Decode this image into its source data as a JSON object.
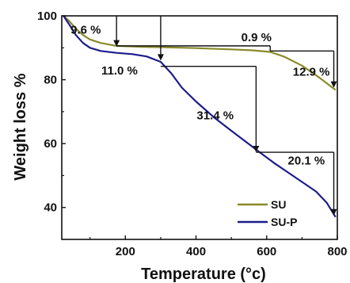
{
  "chart_data": {
    "type": "line",
    "xlabel": "Temperature (°c)",
    "ylabel": "Weight loss %",
    "xlim": [
      20,
      800
    ],
    "ylim": [
      30,
      100
    ],
    "x_ticks": [
      {
        "value": 200,
        "label": "200"
      },
      {
        "value": 400,
        "label": "400"
      },
      {
        "value": 600,
        "label": "600"
      },
      {
        "value": 800,
        "label": "800"
      }
    ],
    "y_ticks": [
      {
        "value": 40,
        "label": "40"
      },
      {
        "value": 60,
        "label": "60"
      },
      {
        "value": 80,
        "label": "80"
      },
      {
        "value": 100,
        "label": "100"
      }
    ],
    "legend_position": "bottom-right",
    "series": [
      {
        "name": "SU",
        "color": "#8a8a2a",
        "points": [
          [
            25,
            100
          ],
          [
            40,
            98.5
          ],
          [
            60,
            96
          ],
          [
            80,
            94
          ],
          [
            100,
            92.6
          ],
          [
            130,
            91.5
          ],
          [
            175,
            90.6
          ],
          [
            250,
            90.3
          ],
          [
            300,
            90.2
          ],
          [
            400,
            89.9
          ],
          [
            500,
            89.5
          ],
          [
            560,
            89.2
          ],
          [
            610,
            88.7
          ],
          [
            650,
            87.2
          ],
          [
            700,
            84.4
          ],
          [
            750,
            80.6
          ],
          [
            795,
            76.8
          ]
        ]
      },
      {
        "name": "SU-P",
        "color": "#1c1c8c",
        "points": [
          [
            25,
            100
          ],
          [
            40,
            97.5
          ],
          [
            60,
            94
          ],
          [
            80,
            91.5
          ],
          [
            100,
            90
          ],
          [
            130,
            89
          ],
          [
            175,
            88.4
          ],
          [
            220,
            88
          ],
          [
            260,
            87.3
          ],
          [
            300,
            85.6
          ],
          [
            330,
            82
          ],
          [
            360,
            77.5
          ],
          [
            400,
            73.2
          ],
          [
            450,
            68.3
          ],
          [
            500,
            64
          ],
          [
            550,
            59.8
          ],
          [
            580,
            57.3
          ],
          [
            620,
            54
          ],
          [
            660,
            51
          ],
          [
            700,
            48
          ],
          [
            740,
            45
          ],
          [
            770,
            41.5
          ],
          [
            795,
            37
          ]
        ]
      }
    ],
    "annotations": [
      {
        "text": "9.6 %",
        "kind": "label"
      },
      {
        "text": "0.9 %",
        "kind": "label"
      },
      {
        "text": "11.0 %",
        "kind": "label"
      },
      {
        "text": "12.9 %",
        "kind": "label"
      },
      {
        "text": "31.4 %",
        "kind": "label"
      },
      {
        "text": "20.1 %",
        "kind": "label"
      }
    ]
  }
}
